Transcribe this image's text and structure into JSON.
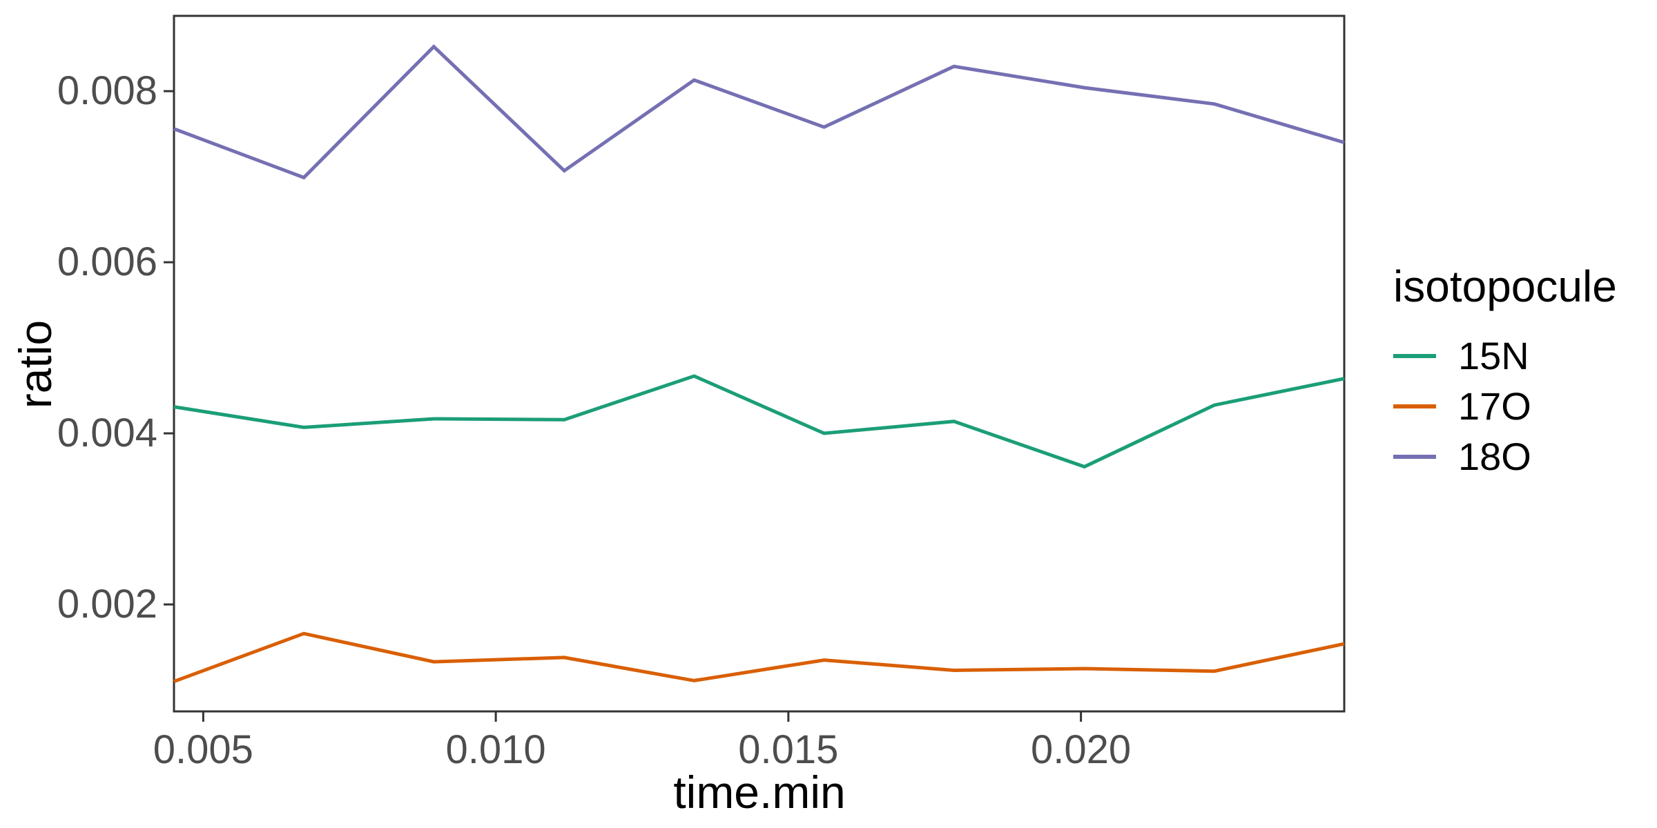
{
  "chart_data": {
    "type": "line",
    "title": "",
    "xlabel": "time.min",
    "ylabel": "ratio",
    "legend_title": "isotopocule",
    "legend_position": "right",
    "grid": "off",
    "background_color": "#FFFFFF",
    "panel_border_color": "#333333",
    "tick_color": "#333333",
    "tick_label_color": "#4D4D4D",
    "axis_title_color": "#000000",
    "xlim": [
      0.0045,
      0.0245
    ],
    "ylim": [
      0.00075,
      0.00888
    ],
    "x_ticks": [
      0.005,
      0.01,
      0.015,
      0.02
    ],
    "x_tick_labels": [
      "0.005",
      "0.010",
      "0.015",
      "0.020"
    ],
    "y_ticks": [
      0.002,
      0.004,
      0.006,
      0.008
    ],
    "y_tick_labels": [
      "0.002",
      "0.004",
      "0.006",
      "0.008"
    ],
    "x": [
      0.0045,
      0.00672,
      0.00894,
      0.01117,
      0.01339,
      0.01561,
      0.01783,
      0.02006,
      0.02228,
      0.0245
    ],
    "series": [
      {
        "name": "15N",
        "color": "#1B9E77",
        "values": [
          0.00431,
          0.00407,
          0.00417,
          0.00416,
          0.00467,
          0.004,
          0.00414,
          0.00361,
          0.00433,
          0.00464
        ]
      },
      {
        "name": "17O",
        "color": "#D95F02",
        "values": [
          0.0011,
          0.00166,
          0.00133,
          0.00138,
          0.00111,
          0.00135,
          0.00123,
          0.00125,
          0.00122,
          0.00154
        ]
      },
      {
        "name": "18O",
        "color": "#7570B3",
        "values": [
          0.00756,
          0.00699,
          0.00852,
          0.00707,
          0.00813,
          0.00758,
          0.00829,
          0.00804,
          0.00785,
          0.0074
        ]
      }
    ]
  }
}
